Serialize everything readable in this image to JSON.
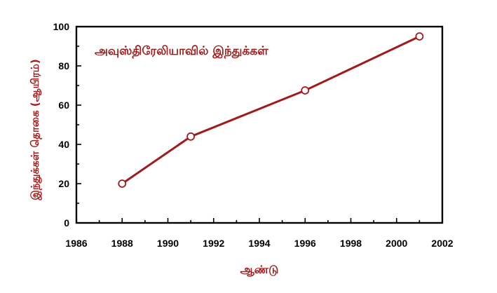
{
  "colors": {
    "series": "#a01c1c",
    "axis": "#000000",
    "text_accent": "#a01c1c",
    "marker_fill": "#ffffff",
    "background": "#ffffff"
  },
  "chart_data": {
    "type": "line",
    "title": "அவுஸ்திரேலியாவில் இந்துக்கள்",
    "xlabel": "ஆண்டு",
    "ylabel": "இந்துக்கள் தொகை (ஆயிரம்)",
    "xlim": [
      1986,
      2002
    ],
    "ylim": [
      0,
      100
    ],
    "xticks": [
      1986,
      1988,
      1990,
      1992,
      1994,
      1996,
      1998,
      2000,
      2002
    ],
    "yticks": [
      0,
      20,
      40,
      60,
      80,
      100
    ],
    "grid": false,
    "series": [
      {
        "x": [
          1988,
          1991,
          1996,
          2001
        ],
        "y": [
          20,
          44,
          67.5,
          95
        ]
      }
    ]
  }
}
